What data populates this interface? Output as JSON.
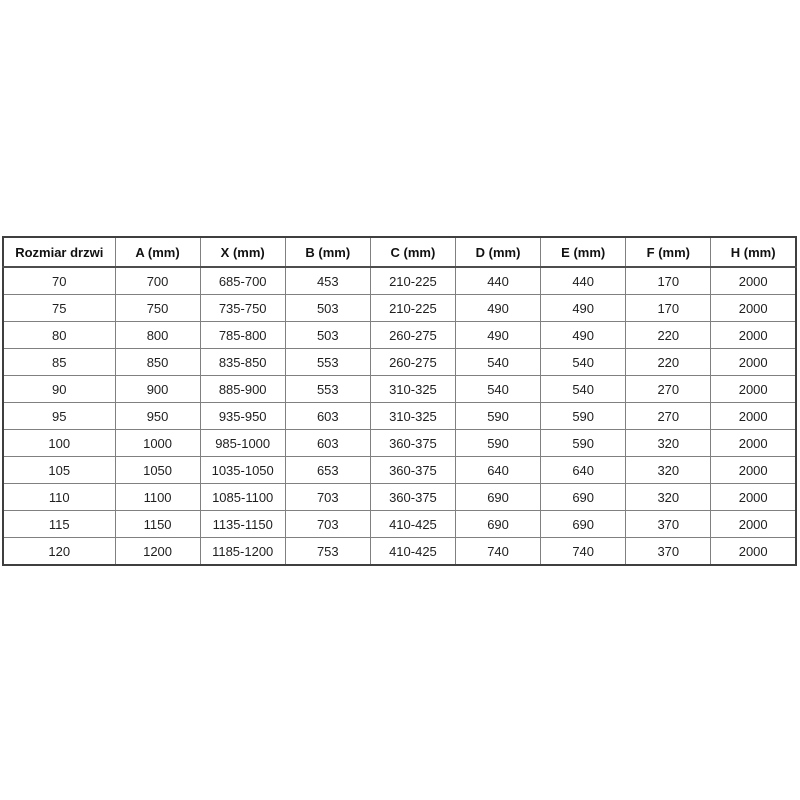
{
  "table": {
    "headers": [
      "Rozmiar drzwi",
      "A (mm)",
      "X (mm)",
      "B (mm)",
      "C (mm)",
      "D (mm)",
      "E (mm)",
      "F (mm)",
      "H (mm)"
    ],
    "rows": [
      [
        "70",
        "700",
        "685-700",
        "453",
        "210-225",
        "440",
        "440",
        "170",
        "2000"
      ],
      [
        "75",
        "750",
        "735-750",
        "503",
        "210-225",
        "490",
        "490",
        "170",
        "2000"
      ],
      [
        "80",
        "800",
        "785-800",
        "503",
        "260-275",
        "490",
        "490",
        "220",
        "2000"
      ],
      [
        "85",
        "850",
        "835-850",
        "553",
        "260-275",
        "540",
        "540",
        "220",
        "2000"
      ],
      [
        "90",
        "900",
        "885-900",
        "553",
        "310-325",
        "540",
        "540",
        "270",
        "2000"
      ],
      [
        "95",
        "950",
        "935-950",
        "603",
        "310-325",
        "590",
        "590",
        "270",
        "2000"
      ],
      [
        "100",
        "1000",
        "985-1000",
        "603",
        "360-375",
        "590",
        "590",
        "320",
        "2000"
      ],
      [
        "105",
        "1050",
        "1035-1050",
        "653",
        "360-375",
        "640",
        "640",
        "320",
        "2000"
      ],
      [
        "110",
        "1100",
        "1085-1100",
        "703",
        "360-375",
        "690",
        "690",
        "320",
        "2000"
      ],
      [
        "115",
        "1150",
        "1135-1150",
        "703",
        "410-425",
        "690",
        "690",
        "370",
        "2000"
      ],
      [
        "120",
        "1200",
        "1185-1200",
        "753",
        "410-425",
        "740",
        "740",
        "370",
        "2000"
      ]
    ]
  },
  "colors": {
    "background": "#ffffff",
    "text": "#1f1f1f",
    "grid_border": "#808080",
    "outer_border": "#3f3f3f"
  }
}
